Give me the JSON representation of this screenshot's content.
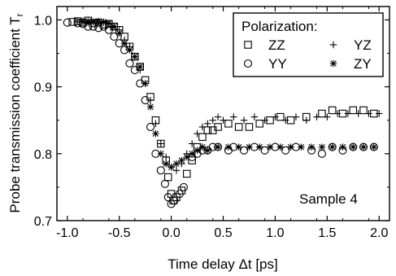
{
  "chart_data": {
    "type": "scatter",
    "title": "",
    "xlabel": "Time delay Δt [ps]",
    "ylabel": "Probe transmission coefficient T",
    "ylabel_subscript": "r",
    "xlim": [
      -1.1,
      2.1
    ],
    "ylim": [
      0.7,
      1.02
    ],
    "xticks": [
      -1.0,
      -0.5,
      0.0,
      0.5,
      1.0,
      1.5,
      2.0
    ],
    "xtick_labels": [
      "-1.0",
      "-0.5",
      "0.0",
      "0.5",
      "1.0",
      "1.5",
      "2.0"
    ],
    "yticks": [
      0.7,
      0.8,
      0.9,
      1.0
    ],
    "ytick_labels": [
      "0.7",
      "0.8",
      "0.9",
      "1.0"
    ],
    "grid": false,
    "legend": {
      "title": "Polarization:",
      "placement": "top-right",
      "entries": [
        {
          "label": "ZZ",
          "marker": "square"
        },
        {
          "label": "YZ",
          "marker": "plus"
        },
        {
          "label": "YY",
          "marker": "circle"
        },
        {
          "label": "ZY",
          "marker": "star"
        }
      ]
    },
    "annotation": "Sample 4",
    "series": [
      {
        "name": "ZZ",
        "marker": "square",
        "points": [
          [
            -0.95,
            0.997
          ],
          [
            -0.9,
            0.998
          ],
          [
            -0.85,
            0.996
          ],
          [
            -0.8,
            0.999
          ],
          [
            -0.75,
            0.995
          ],
          [
            -0.7,
            0.996
          ],
          [
            -0.65,
            0.993
          ],
          [
            -0.6,
            0.994
          ],
          [
            -0.55,
            0.99
          ],
          [
            -0.5,
            0.985
          ],
          [
            -0.45,
            0.975
          ],
          [
            -0.4,
            0.96
          ],
          [
            -0.35,
            0.945
          ],
          [
            -0.3,
            0.93
          ],
          [
            -0.25,
            0.91
          ],
          [
            -0.2,
            0.885
          ],
          [
            -0.15,
            0.85
          ],
          [
            -0.1,
            0.815
          ],
          [
            -0.05,
            0.79
          ],
          [
            -0.03,
            0.765
          ],
          [
            0.0,
            0.74
          ],
          [
            0.02,
            0.73
          ],
          [
            0.05,
            0.735
          ],
          [
            0.1,
            0.745
          ],
          [
            0.15,
            0.77
          ],
          [
            0.2,
            0.79
          ],
          [
            0.25,
            0.81
          ],
          [
            0.3,
            0.825
          ],
          [
            0.35,
            0.835
          ],
          [
            0.4,
            0.835
          ],
          [
            0.45,
            0.84
          ],
          [
            0.55,
            0.845
          ],
          [
            0.65,
            0.84
          ],
          [
            0.75,
            0.84
          ],
          [
            0.85,
            0.845
          ],
          [
            0.95,
            0.85
          ],
          [
            1.05,
            0.855
          ],
          [
            1.15,
            0.85
          ],
          [
            1.3,
            0.855
          ],
          [
            1.45,
            0.86
          ],
          [
            1.55,
            0.865
          ],
          [
            1.65,
            0.86
          ],
          [
            1.75,
            0.865
          ],
          [
            1.85,
            0.865
          ],
          [
            1.95,
            0.86
          ]
        ]
      },
      {
        "name": "YZ",
        "marker": "plus",
        "points": [
          [
            -0.9,
            0.997
          ],
          [
            -0.85,
            0.998
          ],
          [
            -0.8,
            0.996
          ],
          [
            -0.75,
            0.997
          ],
          [
            -0.7,
            0.995
          ],
          [
            -0.65,
            0.996
          ],
          [
            -0.6,
            0.995
          ],
          [
            -0.55,
            0.99
          ],
          [
            -0.5,
            0.985
          ],
          [
            -0.45,
            0.97
          ],
          [
            -0.4,
            0.96
          ],
          [
            -0.35,
            0.945
          ],
          [
            -0.3,
            0.925
          ],
          [
            -0.25,
            0.905
          ],
          [
            -0.2,
            0.88
          ],
          [
            -0.15,
            0.845
          ],
          [
            -0.1,
            0.815
          ],
          [
            -0.05,
            0.795
          ],
          [
            0.0,
            0.78
          ],
          [
            0.05,
            0.775
          ],
          [
            0.1,
            0.785
          ],
          [
            0.15,
            0.8
          ],
          [
            0.2,
            0.815
          ],
          [
            0.25,
            0.83
          ],
          [
            0.3,
            0.84
          ],
          [
            0.35,
            0.845
          ],
          [
            0.4,
            0.85
          ],
          [
            0.45,
            0.855
          ],
          [
            0.5,
            0.85
          ],
          [
            0.6,
            0.855
          ],
          [
            0.7,
            0.85
          ],
          [
            0.8,
            0.855
          ],
          [
            0.9,
            0.85
          ],
          [
            1.0,
            0.855
          ],
          [
            1.1,
            0.85
          ],
          [
            1.2,
            0.855
          ],
          [
            1.3,
            0.85
          ],
          [
            1.4,
            0.855
          ],
          [
            1.5,
            0.855
          ],
          [
            1.6,
            0.86
          ],
          [
            1.7,
            0.86
          ],
          [
            1.8,
            0.86
          ],
          [
            1.9,
            0.86
          ],
          [
            2.0,
            0.86
          ]
        ]
      },
      {
        "name": "YY",
        "marker": "circle",
        "points": [
          [
            -1.0,
            0.996
          ],
          [
            -0.9,
            0.995
          ],
          [
            -0.85,
            0.994
          ],
          [
            -0.8,
            0.99
          ],
          [
            -0.75,
            0.99
          ],
          [
            -0.7,
            0.988
          ],
          [
            -0.65,
            0.99
          ],
          [
            -0.6,
            0.985
          ],
          [
            -0.55,
            0.975
          ],
          [
            -0.5,
            0.965
          ],
          [
            -0.45,
            0.955
          ],
          [
            -0.4,
            0.935
          ],
          [
            -0.35,
            0.925
          ],
          [
            -0.3,
            0.905
          ],
          [
            -0.25,
            0.88
          ],
          [
            -0.2,
            0.84
          ],
          [
            -0.15,
            0.8
          ],
          [
            -0.1,
            0.775
          ],
          [
            -0.06,
            0.755
          ],
          [
            -0.03,
            0.735
          ],
          [
            0.0,
            0.725
          ],
          [
            0.03,
            0.73
          ],
          [
            0.08,
            0.74
          ],
          [
            0.12,
            0.75
          ],
          [
            0.2,
            0.795
          ],
          [
            0.25,
            0.8
          ],
          [
            0.3,
            0.805
          ],
          [
            0.35,
            0.805
          ],
          [
            0.4,
            0.81
          ],
          [
            0.45,
            0.81
          ],
          [
            0.55,
            0.805
          ],
          [
            0.6,
            0.81
          ],
          [
            0.7,
            0.805
          ],
          [
            0.8,
            0.81
          ],
          [
            0.9,
            0.805
          ],
          [
            1.0,
            0.81
          ],
          [
            1.1,
            0.805
          ],
          [
            1.2,
            0.81
          ],
          [
            1.35,
            0.805
          ],
          [
            1.45,
            0.8
          ],
          [
            1.55,
            0.81
          ],
          [
            1.65,
            0.805
          ],
          [
            1.75,
            0.81
          ],
          [
            1.85,
            0.81
          ],
          [
            1.95,
            0.81
          ]
        ]
      },
      {
        "name": "ZY",
        "marker": "star",
        "points": [
          [
            -0.85,
            0.997
          ],
          [
            -0.8,
            0.998
          ],
          [
            -0.75,
            0.997
          ],
          [
            -0.7,
            0.998
          ],
          [
            -0.65,
            0.997
          ],
          [
            -0.6,
            0.995
          ],
          [
            -0.55,
            0.99
          ],
          [
            -0.5,
            0.98
          ],
          [
            -0.45,
            0.965
          ],
          [
            -0.4,
            0.955
          ],
          [
            -0.35,
            0.945
          ],
          [
            -0.3,
            0.93
          ],
          [
            -0.25,
            0.905
          ],
          [
            -0.2,
            0.87
          ],
          [
            -0.15,
            0.83
          ],
          [
            -0.1,
            0.8
          ],
          [
            -0.05,
            0.785
          ],
          [
            0.0,
            0.78
          ],
          [
            0.05,
            0.785
          ],
          [
            0.1,
            0.79
          ],
          [
            0.15,
            0.795
          ],
          [
            0.2,
            0.8
          ],
          [
            0.25,
            0.805
          ],
          [
            0.3,
            0.81
          ],
          [
            0.35,
            0.805
          ],
          [
            0.45,
            0.81
          ],
          [
            0.55,
            0.81
          ],
          [
            0.65,
            0.81
          ],
          [
            0.75,
            0.81
          ],
          [
            0.85,
            0.81
          ],
          [
            0.95,
            0.81
          ],
          [
            1.05,
            0.81
          ],
          [
            1.15,
            0.81
          ],
          [
            1.25,
            0.81
          ],
          [
            1.35,
            0.81
          ],
          [
            1.45,
            0.81
          ],
          [
            1.55,
            0.81
          ],
          [
            1.65,
            0.81
          ],
          [
            1.75,
            0.81
          ],
          [
            1.85,
            0.81
          ],
          [
            1.95,
            0.81
          ]
        ]
      }
    ]
  }
}
